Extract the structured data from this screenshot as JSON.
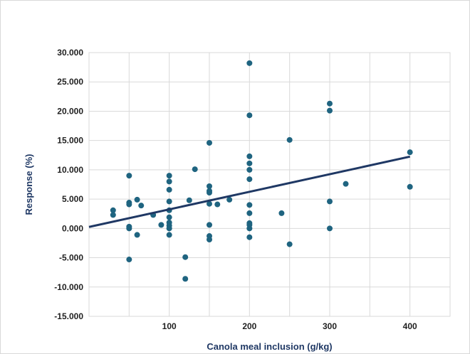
{
  "chart_data": {
    "type": "scatter",
    "title": "",
    "xlabel": "Canola meal inclusion (g/kg)",
    "ylabel": "Response (%)",
    "xlim": [
      0,
      450
    ],
    "ylim": [
      -15,
      30
    ],
    "x_ticks": [
      100,
      200,
      300,
      400
    ],
    "x_tick_labels": [
      "100",
      "200",
      "300",
      "400"
    ],
    "y_ticks": [
      -15,
      -10,
      -5,
      0,
      5,
      10,
      15,
      20,
      25,
      30
    ],
    "y_tick_labels": [
      "-15.000",
      "-10.000",
      "-5.000",
      "0.000",
      "5.000",
      "10.000",
      "15.000",
      "20.000",
      "25.000",
      "30.000"
    ],
    "grid": true,
    "legend": "none",
    "colors": {
      "points": "#1f6480",
      "trendline": "#1f3864",
      "grid": "#d9d9d9"
    },
    "series": [
      {
        "points": [
          [
            30,
            3.1
          ],
          [
            30,
            2.3
          ],
          [
            50,
            9.0
          ],
          [
            50,
            4.4
          ],
          [
            50,
            4.1
          ],
          [
            50,
            0.3
          ],
          [
            50,
            0.0
          ],
          [
            50,
            -5.3
          ],
          [
            60,
            4.9
          ],
          [
            60,
            -1.1
          ],
          [
            65,
            3.9
          ],
          [
            80,
            2.3
          ],
          [
            90,
            0.6
          ],
          [
            100,
            9.0
          ],
          [
            100,
            8.0
          ],
          [
            100,
            6.6
          ],
          [
            100,
            4.6
          ],
          [
            100,
            3.1
          ],
          [
            100,
            1.9
          ],
          [
            100,
            1.0
          ],
          [
            100,
            0.5
          ],
          [
            100,
            0.0
          ],
          [
            100,
            -1.1
          ],
          [
            120,
            -4.9
          ],
          [
            120,
            -8.6
          ],
          [
            125,
            4.8
          ],
          [
            132,
            10.1
          ],
          [
            150,
            14.6
          ],
          [
            150,
            7.2
          ],
          [
            150,
            6.4
          ],
          [
            150,
            6.1
          ],
          [
            150,
            4.2
          ],
          [
            150,
            0.6
          ],
          [
            150,
            -1.3
          ],
          [
            150,
            -1.9
          ],
          [
            160,
            4.1
          ],
          [
            175,
            4.9
          ],
          [
            200,
            28.2
          ],
          [
            200,
            19.3
          ],
          [
            200,
            12.3
          ],
          [
            200,
            11.1
          ],
          [
            200,
            10.0
          ],
          [
            200,
            8.4
          ],
          [
            200,
            4.0
          ],
          [
            200,
            2.6
          ],
          [
            200,
            0.9
          ],
          [
            200,
            0.6
          ],
          [
            200,
            0.0
          ],
          [
            200,
            -1.5
          ],
          [
            240,
            2.6
          ],
          [
            250,
            15.1
          ],
          [
            250,
            -2.7
          ],
          [
            300,
            21.3
          ],
          [
            300,
            20.1
          ],
          [
            300,
            4.6
          ],
          [
            300,
            0.0
          ],
          [
            320,
            7.6
          ],
          [
            400,
            13.0
          ],
          [
            400,
            7.1
          ]
        ]
      }
    ],
    "trendline": {
      "type": "linear",
      "x": [
        0,
        400
      ],
      "y": [
        0.25,
        12.25
      ]
    }
  }
}
